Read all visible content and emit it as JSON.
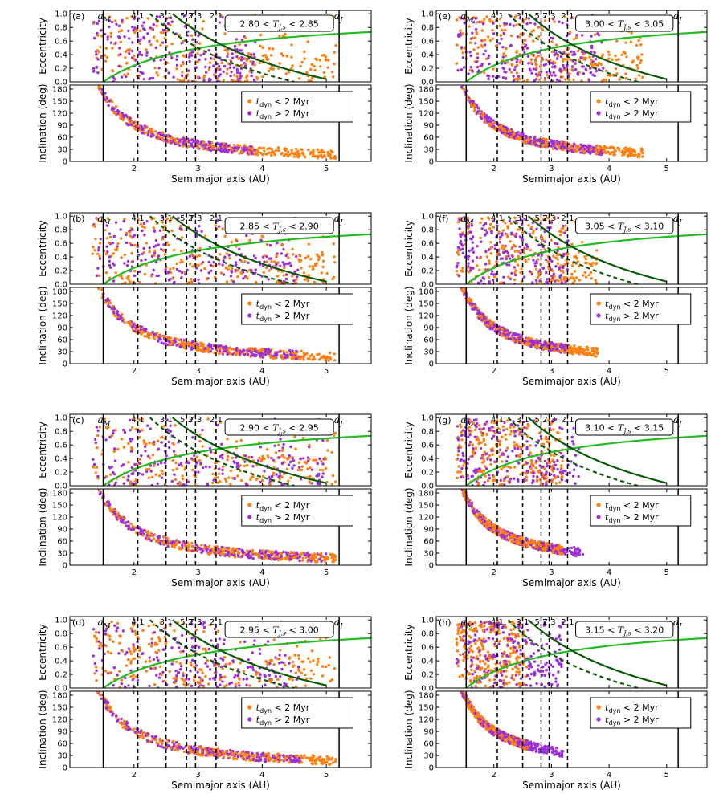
{
  "figure": {
    "ylabel_ecc": "Eccentricity",
    "ylabel_inc": "Inclination (deg)",
    "xlabel": "Semimajor axis (AU)",
    "resonances": [
      "4:1",
      "3:1",
      "5:2",
      "7:3",
      "2:1"
    ],
    "a_mars_label": "aM",
    "a_jupiter_label": "aJ"
  },
  "chart_data": [
    {
      "type": "scatter",
      "panel": "(a)",
      "tisserand_range": "2.80 < TJ,s < 2.85",
      "xlim": [
        1.0,
        5.7
      ],
      "ylim_eccentricity": [
        0.0,
        1.05
      ],
      "ylim_inclination": [
        0,
        190
      ],
      "ecc_yticks": [
        0.0,
        0.2,
        0.4,
        0.6,
        0.8,
        1.0
      ],
      "inc_yticks": [
        0,
        30,
        60,
        90,
        120,
        150,
        180
      ],
      "xticks": [
        2,
        3,
        4,
        5
      ],
      "orange_max_a": 5.15,
      "purple_max_a": 3.9,
      "series": [
        {
          "name": "tdyn < 2 Myr",
          "color": "#ff7f0e"
        },
        {
          "name": "tdyn > 2 Myr",
          "color": "#9b30d9"
        }
      ],
      "vertical_lines_au": {
        "a_mars": 1.52,
        "a_jupiter": 5.2,
        "resonances": [
          2.06,
          2.5,
          2.82,
          2.96,
          3.28
        ]
      }
    },
    {
      "type": "scatter",
      "panel": "(b)",
      "tisserand_range": "2.85 < TJ,s < 2.90",
      "xlim": [
        1.0,
        5.7
      ],
      "ylim_eccentricity": [
        0.0,
        1.05
      ],
      "ylim_inclination": [
        0,
        190
      ],
      "ecc_yticks": [
        0.0,
        0.2,
        0.4,
        0.6,
        0.8,
        1.0
      ],
      "inc_yticks": [
        0,
        30,
        60,
        90,
        120,
        150,
        180
      ],
      "xticks": [
        2,
        3,
        4,
        5
      ],
      "orange_max_a": 5.15,
      "purple_max_a": 4.6,
      "series": [
        {
          "name": "tdyn < 2 Myr",
          "color": "#ff7f0e"
        },
        {
          "name": "tdyn > 2 Myr",
          "color": "#9b30d9"
        }
      ],
      "vertical_lines_au": {
        "a_mars": 1.52,
        "a_jupiter": 5.2,
        "resonances": [
          2.06,
          2.5,
          2.82,
          2.96,
          3.28
        ]
      }
    },
    {
      "type": "scatter",
      "panel": "(c)",
      "tisserand_range": "2.90 < TJ,s < 2.95",
      "xlim": [
        1.0,
        5.7
      ],
      "ylim_eccentricity": [
        0.0,
        1.05
      ],
      "ylim_inclination": [
        0,
        190
      ],
      "ecc_yticks": [
        0.0,
        0.2,
        0.4,
        0.6,
        0.8,
        1.0
      ],
      "inc_yticks": [
        0,
        30,
        60,
        90,
        120,
        150,
        180
      ],
      "xticks": [
        2,
        3,
        4,
        5
      ],
      "orange_max_a": 5.15,
      "purple_max_a": 5.0,
      "series": [
        {
          "name": "tdyn < 2 Myr",
          "color": "#ff7f0e"
        },
        {
          "name": "tdyn > 2 Myr",
          "color": "#9b30d9"
        }
      ],
      "vertical_lines_au": {
        "a_mars": 1.52,
        "a_jupiter": 5.2,
        "resonances": [
          2.06,
          2.5,
          2.82,
          2.96,
          3.28
        ]
      }
    },
    {
      "type": "scatter",
      "panel": "(d)",
      "tisserand_range": "2.95 < TJ,s < 3.00",
      "xlim": [
        1.0,
        5.7
      ],
      "ylim_eccentricity": [
        0.0,
        1.05
      ],
      "ylim_inclination": [
        0,
        190
      ],
      "ecc_yticks": [
        0.0,
        0.2,
        0.4,
        0.6,
        0.8,
        1.0
      ],
      "inc_yticks": [
        0,
        30,
        60,
        90,
        120,
        150,
        180
      ],
      "xticks": [
        2,
        3,
        4,
        5
      ],
      "orange_max_a": 5.15,
      "purple_max_a": 4.6,
      "series": [
        {
          "name": "tdyn < 2 Myr",
          "color": "#ff7f0e"
        },
        {
          "name": "tdyn > 2 Myr",
          "color": "#9b30d9"
        }
      ],
      "vertical_lines_au": {
        "a_mars": 1.52,
        "a_jupiter": 5.2,
        "resonances": [
          2.06,
          2.5,
          2.82,
          2.96,
          3.28
        ]
      }
    },
    {
      "type": "scatter",
      "panel": "(e)",
      "tisserand_range": "3.00 < TJ,s < 3.05",
      "xlim": [
        1.0,
        5.7
      ],
      "ylim_eccentricity": [
        0.0,
        1.05
      ],
      "ylim_inclination": [
        0,
        190
      ],
      "ecc_yticks": [
        0.0,
        0.2,
        0.4,
        0.6,
        0.8,
        1.0
      ],
      "inc_yticks": [
        0,
        30,
        60,
        90,
        120,
        150,
        180
      ],
      "xticks": [
        2,
        3,
        4,
        5
      ],
      "orange_max_a": 4.6,
      "purple_max_a": 3.9,
      "series": [
        {
          "name": "tdyn < 2 Myr",
          "color": "#ff7f0e"
        },
        {
          "name": "tdyn > 2 Myr",
          "color": "#9b30d9"
        }
      ],
      "vertical_lines_au": {
        "a_mars": 1.52,
        "a_jupiter": 5.2,
        "resonances": [
          2.06,
          2.5,
          2.82,
          2.96,
          3.28
        ]
      }
    },
    {
      "type": "scatter",
      "panel": "(f)",
      "tisserand_range": "3.05 < TJ,s < 3.10",
      "xlim": [
        1.0,
        5.7
      ],
      "ylim_eccentricity": [
        0.0,
        1.05
      ],
      "ylim_inclination": [
        0,
        190
      ],
      "ecc_yticks": [
        0.0,
        0.2,
        0.4,
        0.6,
        0.8,
        1.0
      ],
      "inc_yticks": [
        0,
        30,
        60,
        90,
        120,
        150,
        180
      ],
      "xticks": [
        2,
        3,
        4,
        5
      ],
      "orange_max_a": 3.8,
      "purple_max_a": 3.3,
      "series": [
        {
          "name": "tdyn < 2 Myr",
          "color": "#ff7f0e"
        },
        {
          "name": "tdyn > 2 Myr",
          "color": "#9b30d9"
        }
      ],
      "vertical_lines_au": {
        "a_mars": 1.52,
        "a_jupiter": 5.2,
        "resonances": [
          2.06,
          2.5,
          2.82,
          2.96,
          3.28
        ]
      }
    },
    {
      "type": "scatter",
      "panel": "(g)",
      "tisserand_range": "3.10 < TJ,s < 3.15",
      "xlim": [
        1.0,
        5.7
      ],
      "ylim_eccentricity": [
        0.0,
        1.05
      ],
      "ylim_inclination": [
        0,
        190
      ],
      "ecc_yticks": [
        0.0,
        0.2,
        0.4,
        0.6,
        0.8,
        1.0
      ],
      "inc_yticks": [
        0,
        30,
        60,
        90,
        120,
        150,
        180
      ],
      "xticks": [
        2,
        3,
        4,
        5
      ],
      "orange_max_a": 3.2,
      "purple_max_a": 3.55,
      "series": [
        {
          "name": "tdyn < 2 Myr",
          "color": "#ff7f0e"
        },
        {
          "name": "tdyn > 2 Myr",
          "color": "#9b30d9"
        }
      ],
      "vertical_lines_au": {
        "a_mars": 1.52,
        "a_jupiter": 5.2,
        "resonances": [
          2.06,
          2.5,
          2.82,
          2.96,
          3.28
        ]
      }
    },
    {
      "type": "scatter",
      "panel": "(h)",
      "tisserand_range": "3.15 < TJ,s < 3.20",
      "xlim": [
        1.0,
        5.7
      ],
      "ylim_eccentricity": [
        0.0,
        1.05
      ],
      "ylim_inclination": [
        0,
        190
      ],
      "ecc_yticks": [
        0.0,
        0.2,
        0.4,
        0.6,
        0.8,
        1.0
      ],
      "inc_yticks": [
        0,
        30,
        60,
        90,
        120,
        150,
        180
      ],
      "xticks": [
        2,
        3,
        4,
        5
      ],
      "orange_max_a": 2.6,
      "purple_max_a": 3.2,
      "series": [
        {
          "name": "tdyn < 2 Myr",
          "color": "#ff7f0e"
        },
        {
          "name": "tdyn > 2 Myr",
          "color": "#9b30d9"
        }
      ],
      "vertical_lines_au": {
        "a_mars": 1.52,
        "a_jupiter": 5.2,
        "resonances": [
          2.06,
          2.5,
          2.82,
          2.96,
          3.28
        ]
      }
    }
  ]
}
